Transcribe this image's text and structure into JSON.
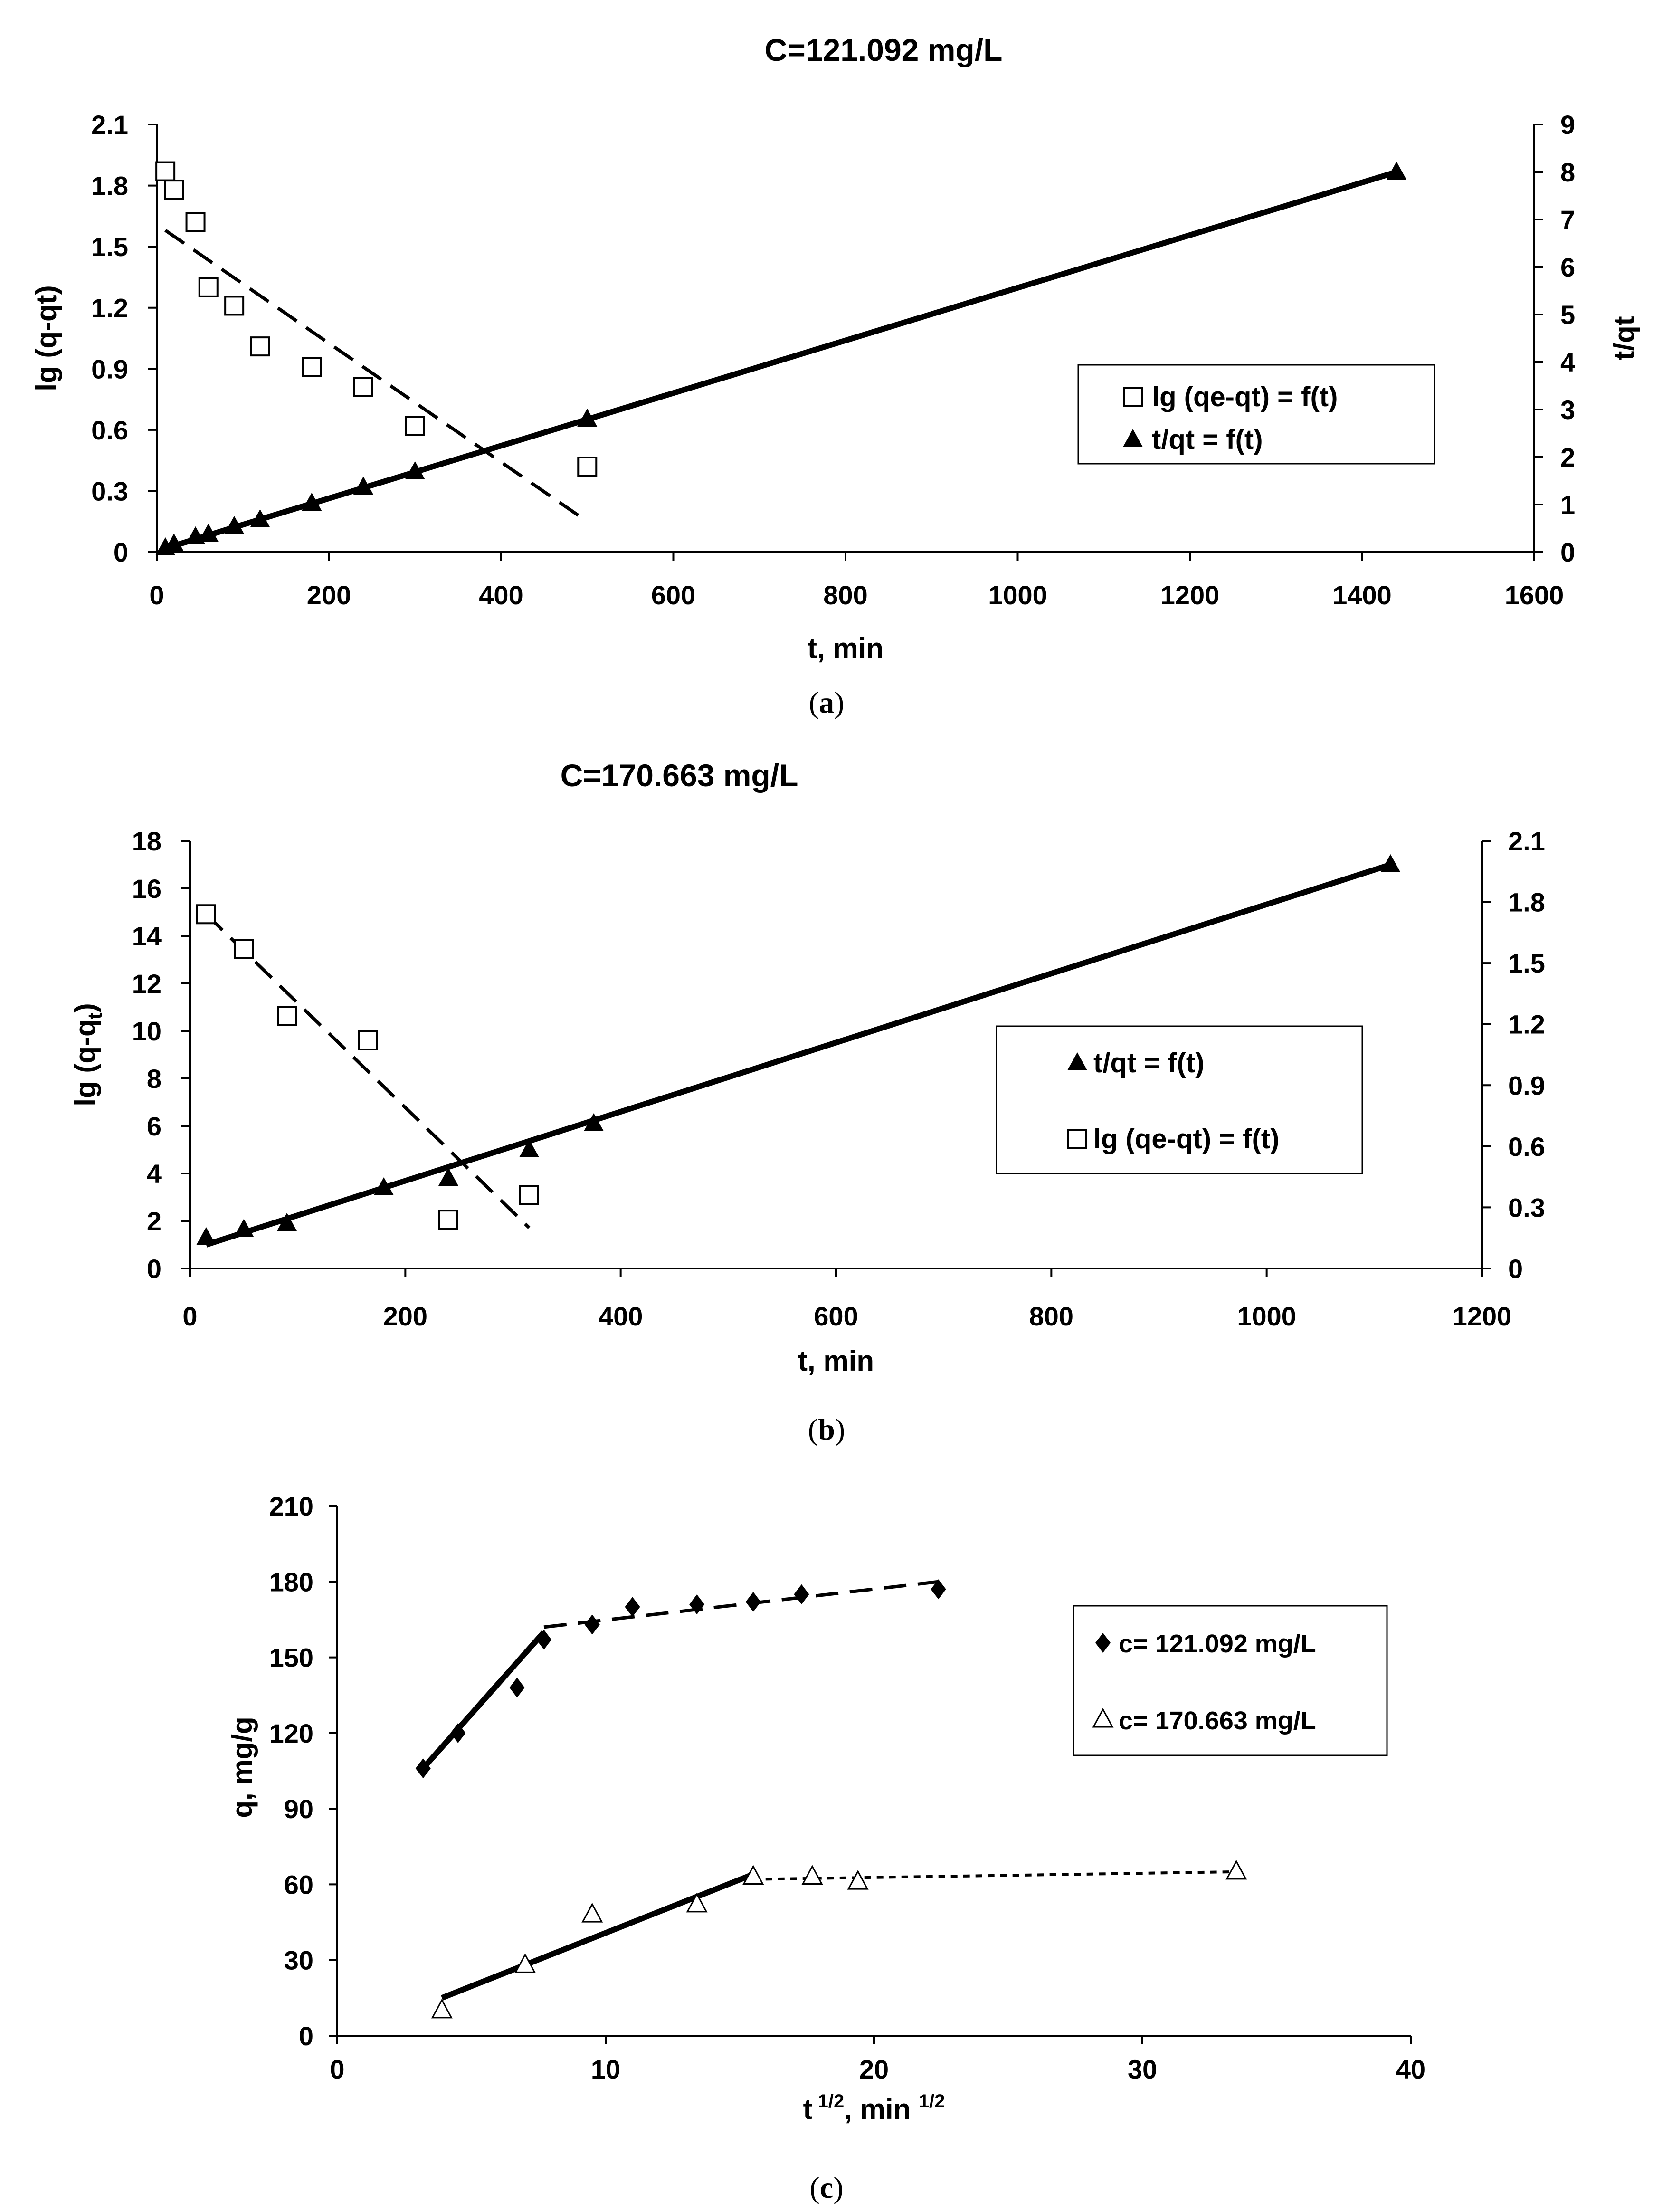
{
  "chart_data": [
    {
      "id": "a",
      "type": "scatter",
      "title": "C=121.092 mg/L",
      "caption": "a",
      "xlabel": "t, min",
      "ylabel_left": "lg (q-qt)",
      "ylabel_right": "t/qt",
      "xlim": [
        0,
        1600
      ],
      "xticks": [
        0,
        200,
        400,
        600,
        800,
        1000,
        1200,
        1400,
        1600
      ],
      "ylim_left": [
        0,
        2.1
      ],
      "yticks_left": [
        "0",
        "0.3",
        "0.6",
        "0.9",
        "1.2",
        "1.5",
        "1.8",
        "2.1"
      ],
      "ylim_right": [
        0,
        9
      ],
      "yticks_right": [
        "0",
        "1",
        "2",
        "3",
        "4",
        "5",
        "6",
        "7",
        "8",
        "9"
      ],
      "legend": [
        "lg (qe-qt) = f(t)",
        "t/qt = f(t)"
      ],
      "series": [
        {
          "name": "lg (qe-qt) = f(t)",
          "axis": "left",
          "marker": "open-square",
          "x": [
            10,
            20,
            45,
            60,
            90,
            120,
            180,
            240,
            300,
            500
          ],
          "y": [
            1.87,
            1.78,
            1.62,
            1.3,
            1.21,
            1.01,
            0.91,
            0.81,
            0.62,
            0.42
          ],
          "fit": {
            "style": "dashed",
            "x": [
              10,
              500
            ],
            "y": [
              1.58,
              0.15
            ]
          }
        },
        {
          "name": "t/qt = f(t)",
          "axis": "right",
          "marker": "filled-triangle",
          "x": [
            10,
            20,
            45,
            60,
            90,
            120,
            180,
            240,
            300,
            500,
            1440
          ],
          "y": [
            0.09,
            0.17,
            0.32,
            0.38,
            0.54,
            0.68,
            1.03,
            1.37,
            1.69,
            2.8,
            8.0
          ],
          "fit": {
            "style": "solid",
            "x": [
              5,
              1440
            ],
            "y": [
              0.05,
              8.0
            ]
          }
        }
      ]
    },
    {
      "id": "b",
      "type": "scatter",
      "title": "C=170.663 mg/L",
      "caption": "b",
      "xlabel": "t, min",
      "ylabel_left": "lg (q-q",
      "ylabel_sub": "t",
      "ylabel_close": ")",
      "ylabel_right": "",
      "xlim": [
        0,
        1200
      ],
      "xticks": [
        0,
        200,
        400,
        600,
        800,
        1000,
        1200
      ],
      "ylim_left": [
        0,
        18
      ],
      "yticks_left": [
        "0",
        "2",
        "4",
        "6",
        "8",
        "10",
        "12",
        "14",
        "16",
        "18"
      ],
      "ylim_right": [
        0,
        2.1
      ],
      "yticks_right": [
        "0",
        "0.3",
        "0.6",
        "0.9",
        "1.2",
        "1.5",
        "1.8",
        "2.1"
      ],
      "legend": [
        "t/qt = f(t)",
        "lg (qe-qt) = f(t)"
      ],
      "series": [
        {
          "name": "t/qt = f(t)",
          "axis": "left",
          "marker": "filled-triangle",
          "x": [
            15,
            50,
            90,
            180,
            240,
            315,
            375,
            1115
          ],
          "y": [
            1.3,
            1.65,
            1.9,
            3.4,
            3.8,
            5.0,
            6.1,
            17.0
          ],
          "fit": {
            "style": "solid",
            "x": [
              15,
              1115
            ],
            "y": [
              1.0,
              17.0
            ]
          }
        },
        {
          "name": "lg (qe-qt) = f(t)",
          "axis": "right",
          "marker": "open-square",
          "x": [
            15,
            50,
            90,
            165,
            240,
            315
          ],
          "y": [
            1.74,
            1.57,
            1.24,
            1.12,
            0.24,
            0.36
          ],
          "fit": {
            "style": "dashed",
            "x": [
              15,
              315
            ],
            "y": [
              1.74,
              0.2
            ]
          }
        }
      ]
    },
    {
      "id": "c",
      "type": "scatter",
      "title": "",
      "caption": "c",
      "xlabel_base": "t",
      "xlabel_sup1": "1/2",
      "xlabel_mid": ", min",
      "xlabel_sup2": "1/2",
      "ylabel_left": "q, mg/g",
      "xlim": [
        0,
        40
      ],
      "xticks": [
        0,
        10,
        20,
        30,
        40
      ],
      "ylim_left": [
        0,
        210
      ],
      "yticks_left": [
        "0",
        "30",
        "60",
        "90",
        "120",
        "150",
        "180",
        "210"
      ],
      "legend": [
        "c= 121.092 mg/L",
        "c= 170.663 mg/L"
      ],
      "series": [
        {
          "name": "c= 121.092 mg/L",
          "axis": "left",
          "marker": "filled-diamond",
          "x": [
            3.2,
            4.5,
            6.7,
            7.7,
            9.5,
            11.0,
            13.4,
            15.5,
            17.3,
            22.4
          ],
          "y": [
            106,
            120,
            138,
            157,
            163,
            170,
            171,
            172,
            175,
            177
          ],
          "fits": [
            {
              "style": "solid",
              "x": [
                3.2,
                7.7
              ],
              "y": [
                106,
                160
              ]
            },
            {
              "style": "dashed",
              "x": [
                7.7,
                22.4
              ],
              "y": [
                162,
                180
              ]
            }
          ]
        },
        {
          "name": "c= 170.663 mg/L",
          "axis": "left",
          "marker": "open-triangle",
          "x": [
            3.9,
            7.0,
            9.5,
            13.4,
            15.5,
            17.7,
            19.4,
            33.5
          ],
          "y": [
            10,
            28,
            48,
            52,
            63,
            63,
            61,
            65
          ],
          "fits": [
            {
              "style": "solid",
              "x": [
                3.9,
                15.5
              ],
              "y": [
                15,
                64
              ]
            },
            {
              "style": "dotted",
              "x": [
                15.5,
                33.5
              ],
              "y": [
                62,
                65
              ]
            }
          ]
        }
      ]
    }
  ]
}
